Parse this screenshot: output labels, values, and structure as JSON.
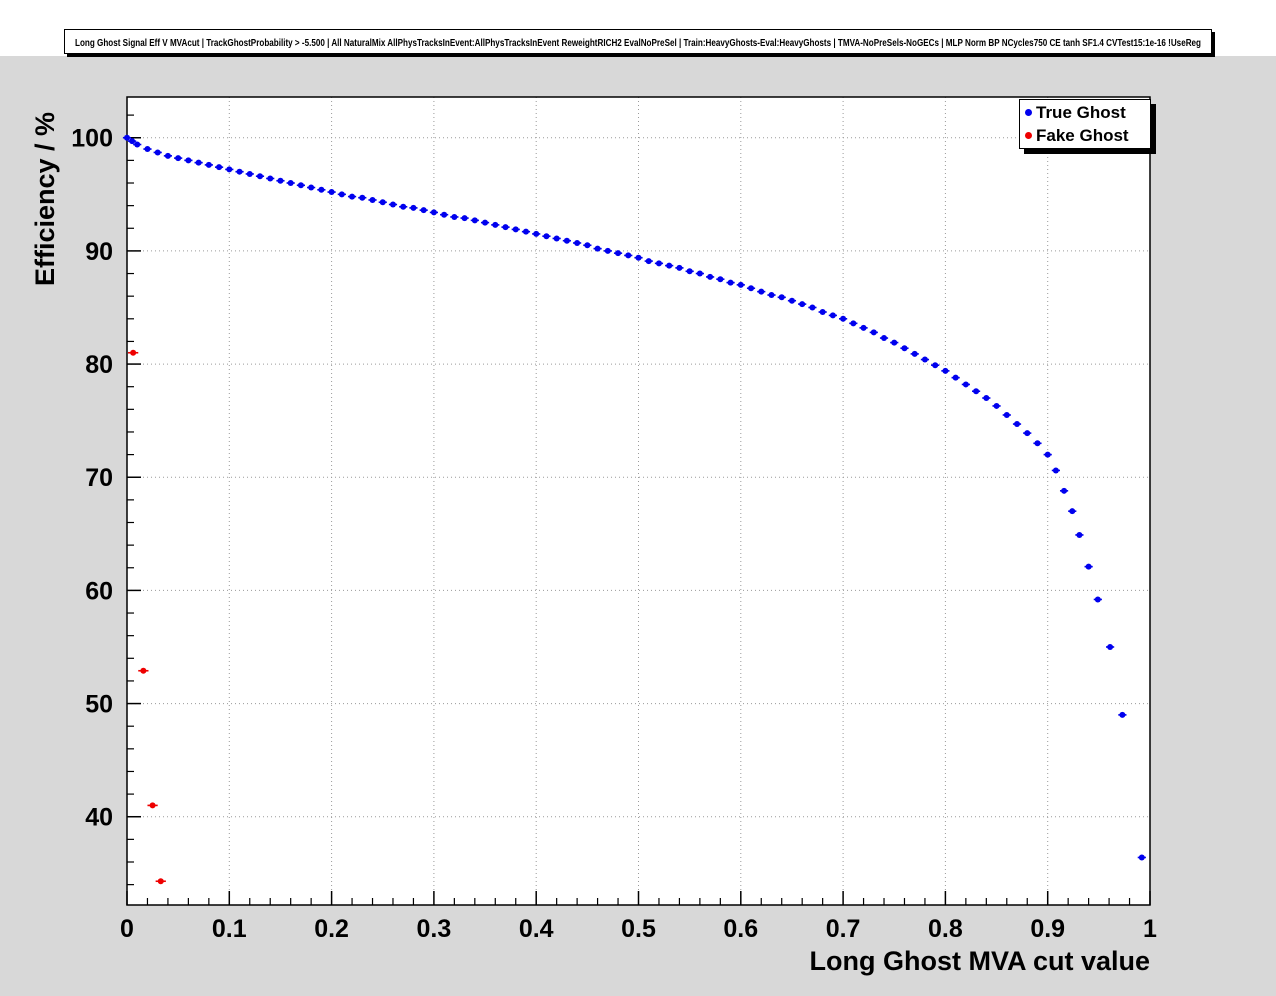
{
  "window": {
    "canvas_bg": "#d8d8d8",
    "frame_bg": "#ffffff",
    "grid_color": "#9a9a9a"
  },
  "title": "Long Ghost Signal Eff V MVAcut | TrackGhostProbability > -5.500 | All NaturalMix AllPhysTracksInEvent:AllPhysTracksInEvent ReweightRICH2 EvalNoPreSel | Train:HeavyGhosts-Eval:HeavyGhosts | TMVA-NoPreSels-NoGECs | MLP Norm BP NCycles750 CE tanh SF1.4 CVTest15:1e-16 !UseReg",
  "chart_data": {
    "type": "scatter",
    "title": "Long Ghost Signal Eff V MVAcut",
    "xlabel": "Long Ghost MVA cut value",
    "ylabel": "Efficiency / %",
    "xlim": [
      0,
      1.0
    ],
    "ylim": [
      32.2,
      103.6
    ],
    "x_ticks": [
      0,
      0.1,
      0.2,
      0.3,
      0.4,
      0.5,
      0.6,
      0.7,
      0.8,
      0.9,
      1.0
    ],
    "x_tick_labels": [
      "0",
      "0.1",
      "0.2",
      "0.3",
      "0.4",
      "0.5",
      "0.6",
      "0.7",
      "0.8",
      "0.9",
      "1"
    ],
    "y_ticks": [
      40,
      50,
      60,
      70,
      80,
      90,
      100
    ],
    "y_tick_labels": [
      "40",
      "50",
      "60",
      "70",
      "80",
      "90",
      "100"
    ],
    "x_minor_step": 0.02,
    "y_minor_step": 2,
    "grid": "dotted",
    "legend_position": "top-right",
    "series": [
      {
        "name": "True Ghost",
        "color": "#0000ee",
        "xerr": 0.004,
        "points": [
          [
            0.0,
            100.0
          ],
          [
            0.005,
            99.7
          ],
          [
            0.01,
            99.4
          ],
          [
            0.02,
            99.0
          ],
          [
            0.03,
            98.7
          ],
          [
            0.04,
            98.4
          ],
          [
            0.05,
            98.2
          ],
          [
            0.06,
            98.0
          ],
          [
            0.07,
            97.8
          ],
          [
            0.08,
            97.6
          ],
          [
            0.09,
            97.4
          ],
          [
            0.1,
            97.2
          ],
          [
            0.11,
            97.0
          ],
          [
            0.12,
            96.8
          ],
          [
            0.13,
            96.6
          ],
          [
            0.14,
            96.4
          ],
          [
            0.15,
            96.2
          ],
          [
            0.16,
            96.0
          ],
          [
            0.17,
            95.8
          ],
          [
            0.18,
            95.6
          ],
          [
            0.19,
            95.4
          ],
          [
            0.2,
            95.2
          ],
          [
            0.21,
            95.0
          ],
          [
            0.22,
            94.8
          ],
          [
            0.23,
            94.7
          ],
          [
            0.24,
            94.5
          ],
          [
            0.25,
            94.3
          ],
          [
            0.26,
            94.1
          ],
          [
            0.27,
            93.9
          ],
          [
            0.28,
            93.8
          ],
          [
            0.29,
            93.6
          ],
          [
            0.3,
            93.4
          ],
          [
            0.31,
            93.2
          ],
          [
            0.32,
            93.0
          ],
          [
            0.33,
            92.9
          ],
          [
            0.34,
            92.7
          ],
          [
            0.35,
            92.5
          ],
          [
            0.36,
            92.3
          ],
          [
            0.37,
            92.1
          ],
          [
            0.38,
            91.9
          ],
          [
            0.39,
            91.7
          ],
          [
            0.4,
            91.5
          ],
          [
            0.41,
            91.3
          ],
          [
            0.42,
            91.1
          ],
          [
            0.43,
            90.9
          ],
          [
            0.44,
            90.7
          ],
          [
            0.45,
            90.5
          ],
          [
            0.46,
            90.2
          ],
          [
            0.47,
            90.0
          ],
          [
            0.48,
            89.8
          ],
          [
            0.49,
            89.6
          ],
          [
            0.5,
            89.4
          ],
          [
            0.51,
            89.1
          ],
          [
            0.52,
            88.9
          ],
          [
            0.53,
            88.7
          ],
          [
            0.54,
            88.5
          ],
          [
            0.55,
            88.2
          ],
          [
            0.56,
            88.0
          ],
          [
            0.57,
            87.7
          ],
          [
            0.58,
            87.5
          ],
          [
            0.59,
            87.2
          ],
          [
            0.6,
            87.0
          ],
          [
            0.61,
            86.7
          ],
          [
            0.62,
            86.4
          ],
          [
            0.63,
            86.1
          ],
          [
            0.64,
            85.9
          ],
          [
            0.65,
            85.6
          ],
          [
            0.66,
            85.3
          ],
          [
            0.67,
            85.0
          ],
          [
            0.68,
            84.6
          ],
          [
            0.69,
            84.3
          ],
          [
            0.7,
            84.0
          ],
          [
            0.71,
            83.6
          ],
          [
            0.72,
            83.2
          ],
          [
            0.73,
            82.8
          ],
          [
            0.74,
            82.3
          ],
          [
            0.75,
            81.9
          ],
          [
            0.76,
            81.4
          ],
          [
            0.77,
            80.9
          ],
          [
            0.78,
            80.4
          ],
          [
            0.79,
            79.9
          ],
          [
            0.8,
            79.4
          ],
          [
            0.81,
            78.8
          ],
          [
            0.82,
            78.2
          ],
          [
            0.83,
            77.6
          ],
          [
            0.84,
            77.0
          ],
          [
            0.85,
            76.3
          ],
          [
            0.86,
            75.5
          ],
          [
            0.87,
            74.7
          ],
          [
            0.88,
            73.9
          ],
          [
            0.89,
            73.0
          ],
          [
            0.9,
            72.0
          ],
          [
            0.908,
            70.6
          ],
          [
            0.916,
            68.8
          ],
          [
            0.924,
            67.0
          ],
          [
            0.931,
            64.9
          ],
          [
            0.94,
            62.1
          ],
          [
            0.949,
            59.2
          ],
          [
            0.961,
            55.0
          ],
          [
            0.973,
            49.0
          ],
          [
            0.992,
            36.4
          ]
        ]
      },
      {
        "name": "Fake Ghost",
        "color": "#ee0000",
        "xerr": 0.005,
        "points": [
          [
            0.006,
            81.0
          ],
          [
            0.016,
            52.9
          ],
          [
            0.025,
            41.0
          ],
          [
            0.033,
            34.3
          ]
        ]
      }
    ]
  },
  "legend": {
    "entries": [
      {
        "label": "True Ghost",
        "color": "#0000ee"
      },
      {
        "label": "Fake Ghost",
        "color": "#ee0000"
      }
    ]
  }
}
